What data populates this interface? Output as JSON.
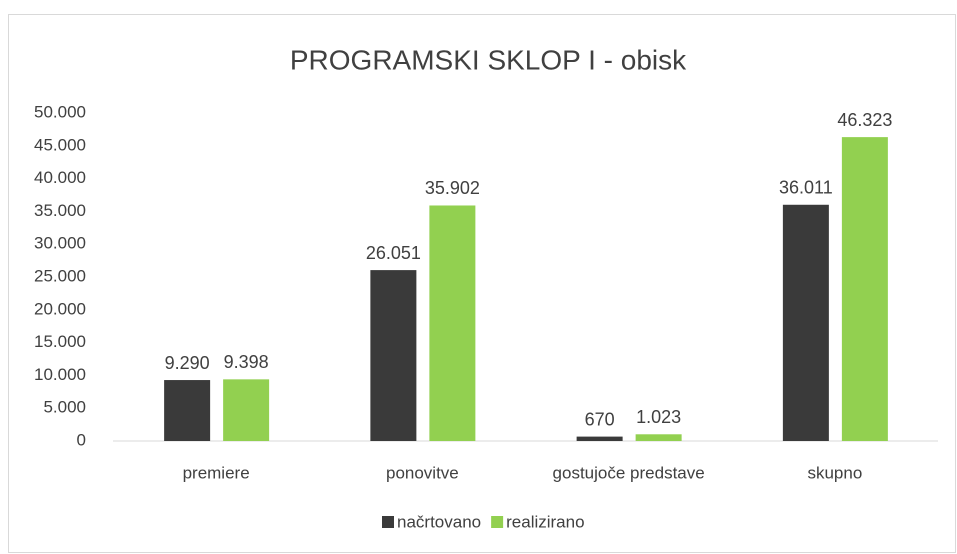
{
  "chart_data": {
    "type": "bar",
    "title": "PROGRAMSKI SKLOP I - obisk",
    "categories": [
      "premiere",
      "ponovitve",
      "gostujoče predstave",
      "skupno"
    ],
    "series": [
      {
        "name": "načrtovano",
        "color": "#3a3a3a",
        "values": [
          9290,
          26051,
          670,
          36011
        ],
        "value_labels": [
          "9.290",
          "26.051",
          "670",
          "36.011"
        ]
      },
      {
        "name": "realizirano",
        "color": "#92d050",
        "values": [
          9398,
          35902,
          1023,
          46323
        ],
        "value_labels": [
          "9.398",
          "35.902",
          "1.023",
          "46.323"
        ]
      }
    ],
    "ylim": [
      0,
      50000
    ],
    "yticks": [
      0,
      {
        "value": 5000,
        "label": "5.000"
      },
      {
        "value": 10000,
        "label": "10.000"
      },
      {
        "value": 15000,
        "label": "15.000"
      },
      {
        "value": 20000,
        "label": "20.000"
      },
      {
        "value": 25000,
        "label": "25.000"
      },
      {
        "value": 30000,
        "label": "30.000"
      },
      {
        "value": 35000,
        "label": "35.000"
      },
      {
        "value": 40000,
        "label": "40.000"
      },
      {
        "value": 45000,
        "label": "45.000"
      },
      {
        "value": 50000,
        "label": "50.000"
      }
    ],
    "grid": false,
    "legend": "bottom"
  }
}
